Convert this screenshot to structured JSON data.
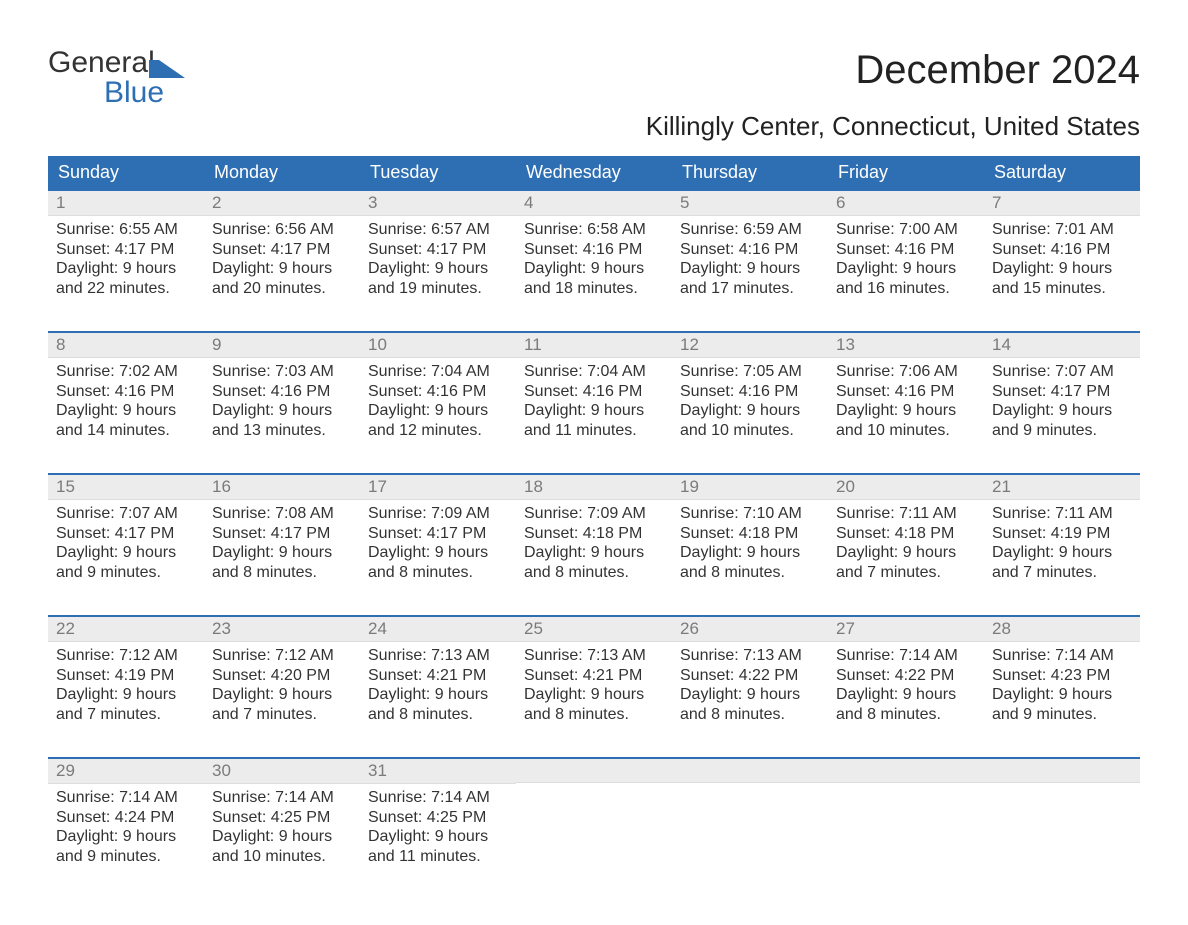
{
  "logo": {
    "general": "General",
    "blue": "Blue"
  },
  "month_title": "December 2024",
  "location": "Killingly Center, Connecticut, United States",
  "weekdays": [
    "Sunday",
    "Monday",
    "Tuesday",
    "Wednesday",
    "Thursday",
    "Friday",
    "Saturday"
  ],
  "colors": {
    "header_bg": "#2e6fb4",
    "header_text": "#ffffff",
    "daynum_bg": "#ececec",
    "daynum_text": "#7b7b7b",
    "body_text": "#333333",
    "accent": "#2e6fb4",
    "page_bg": "#ffffff"
  },
  "weeks": [
    [
      {
        "n": "1",
        "sunrise": "Sunrise: 6:55 AM",
        "sunset": "Sunset: 4:17 PM",
        "daylight": "Daylight: 9 hours\nand 22 minutes."
      },
      {
        "n": "2",
        "sunrise": "Sunrise: 6:56 AM",
        "sunset": "Sunset: 4:17 PM",
        "daylight": "Daylight: 9 hours\nand 20 minutes."
      },
      {
        "n": "3",
        "sunrise": "Sunrise: 6:57 AM",
        "sunset": "Sunset: 4:17 PM",
        "daylight": "Daylight: 9 hours\nand 19 minutes."
      },
      {
        "n": "4",
        "sunrise": "Sunrise: 6:58 AM",
        "sunset": "Sunset: 4:16 PM",
        "daylight": "Daylight: 9 hours\nand 18 minutes."
      },
      {
        "n": "5",
        "sunrise": "Sunrise: 6:59 AM",
        "sunset": "Sunset: 4:16 PM",
        "daylight": "Daylight: 9 hours\nand 17 minutes."
      },
      {
        "n": "6",
        "sunrise": "Sunrise: 7:00 AM",
        "sunset": "Sunset: 4:16 PM",
        "daylight": "Daylight: 9 hours\nand 16 minutes."
      },
      {
        "n": "7",
        "sunrise": "Sunrise: 7:01 AM",
        "sunset": "Sunset: 4:16 PM",
        "daylight": "Daylight: 9 hours\nand 15 minutes."
      }
    ],
    [
      {
        "n": "8",
        "sunrise": "Sunrise: 7:02 AM",
        "sunset": "Sunset: 4:16 PM",
        "daylight": "Daylight: 9 hours\nand 14 minutes."
      },
      {
        "n": "9",
        "sunrise": "Sunrise: 7:03 AM",
        "sunset": "Sunset: 4:16 PM",
        "daylight": "Daylight: 9 hours\nand 13 minutes."
      },
      {
        "n": "10",
        "sunrise": "Sunrise: 7:04 AM",
        "sunset": "Sunset: 4:16 PM",
        "daylight": "Daylight: 9 hours\nand 12 minutes."
      },
      {
        "n": "11",
        "sunrise": "Sunrise: 7:04 AM",
        "sunset": "Sunset: 4:16 PM",
        "daylight": "Daylight: 9 hours\nand 11 minutes."
      },
      {
        "n": "12",
        "sunrise": "Sunrise: 7:05 AM",
        "sunset": "Sunset: 4:16 PM",
        "daylight": "Daylight: 9 hours\nand 10 minutes."
      },
      {
        "n": "13",
        "sunrise": "Sunrise: 7:06 AM",
        "sunset": "Sunset: 4:16 PM",
        "daylight": "Daylight: 9 hours\nand 10 minutes."
      },
      {
        "n": "14",
        "sunrise": "Sunrise: 7:07 AM",
        "sunset": "Sunset: 4:17 PM",
        "daylight": "Daylight: 9 hours\nand 9 minutes."
      }
    ],
    [
      {
        "n": "15",
        "sunrise": "Sunrise: 7:07 AM",
        "sunset": "Sunset: 4:17 PM",
        "daylight": "Daylight: 9 hours\nand 9 minutes."
      },
      {
        "n": "16",
        "sunrise": "Sunrise: 7:08 AM",
        "sunset": "Sunset: 4:17 PM",
        "daylight": "Daylight: 9 hours\nand 8 minutes."
      },
      {
        "n": "17",
        "sunrise": "Sunrise: 7:09 AM",
        "sunset": "Sunset: 4:17 PM",
        "daylight": "Daylight: 9 hours\nand 8 minutes."
      },
      {
        "n": "18",
        "sunrise": "Sunrise: 7:09 AM",
        "sunset": "Sunset: 4:18 PM",
        "daylight": "Daylight: 9 hours\nand 8 minutes."
      },
      {
        "n": "19",
        "sunrise": "Sunrise: 7:10 AM",
        "sunset": "Sunset: 4:18 PM",
        "daylight": "Daylight: 9 hours\nand 8 minutes."
      },
      {
        "n": "20",
        "sunrise": "Sunrise: 7:11 AM",
        "sunset": "Sunset: 4:18 PM",
        "daylight": "Daylight: 9 hours\nand 7 minutes."
      },
      {
        "n": "21",
        "sunrise": "Sunrise: 7:11 AM",
        "sunset": "Sunset: 4:19 PM",
        "daylight": "Daylight: 9 hours\nand 7 minutes."
      }
    ],
    [
      {
        "n": "22",
        "sunrise": "Sunrise: 7:12 AM",
        "sunset": "Sunset: 4:19 PM",
        "daylight": "Daylight: 9 hours\nand 7 minutes."
      },
      {
        "n": "23",
        "sunrise": "Sunrise: 7:12 AM",
        "sunset": "Sunset: 4:20 PM",
        "daylight": "Daylight: 9 hours\nand 7 minutes."
      },
      {
        "n": "24",
        "sunrise": "Sunrise: 7:13 AM",
        "sunset": "Sunset: 4:21 PM",
        "daylight": "Daylight: 9 hours\nand 8 minutes."
      },
      {
        "n": "25",
        "sunrise": "Sunrise: 7:13 AM",
        "sunset": "Sunset: 4:21 PM",
        "daylight": "Daylight: 9 hours\nand 8 minutes."
      },
      {
        "n": "26",
        "sunrise": "Sunrise: 7:13 AM",
        "sunset": "Sunset: 4:22 PM",
        "daylight": "Daylight: 9 hours\nand 8 minutes."
      },
      {
        "n": "27",
        "sunrise": "Sunrise: 7:14 AM",
        "sunset": "Sunset: 4:22 PM",
        "daylight": "Daylight: 9 hours\nand 8 minutes."
      },
      {
        "n": "28",
        "sunrise": "Sunrise: 7:14 AM",
        "sunset": "Sunset: 4:23 PM",
        "daylight": "Daylight: 9 hours\nand 9 minutes."
      }
    ],
    [
      {
        "n": "29",
        "sunrise": "Sunrise: 7:14 AM",
        "sunset": "Sunset: 4:24 PM",
        "daylight": "Daylight: 9 hours\nand 9 minutes."
      },
      {
        "n": "30",
        "sunrise": "Sunrise: 7:14 AM",
        "sunset": "Sunset: 4:25 PM",
        "daylight": "Daylight: 9 hours\nand 10 minutes."
      },
      {
        "n": "31",
        "sunrise": "Sunrise: 7:14 AM",
        "sunset": "Sunset: 4:25 PM",
        "daylight": "Daylight: 9 hours\nand 11 minutes."
      },
      {
        "empty": true
      },
      {
        "empty": true
      },
      {
        "empty": true
      },
      {
        "empty": true
      }
    ]
  ]
}
